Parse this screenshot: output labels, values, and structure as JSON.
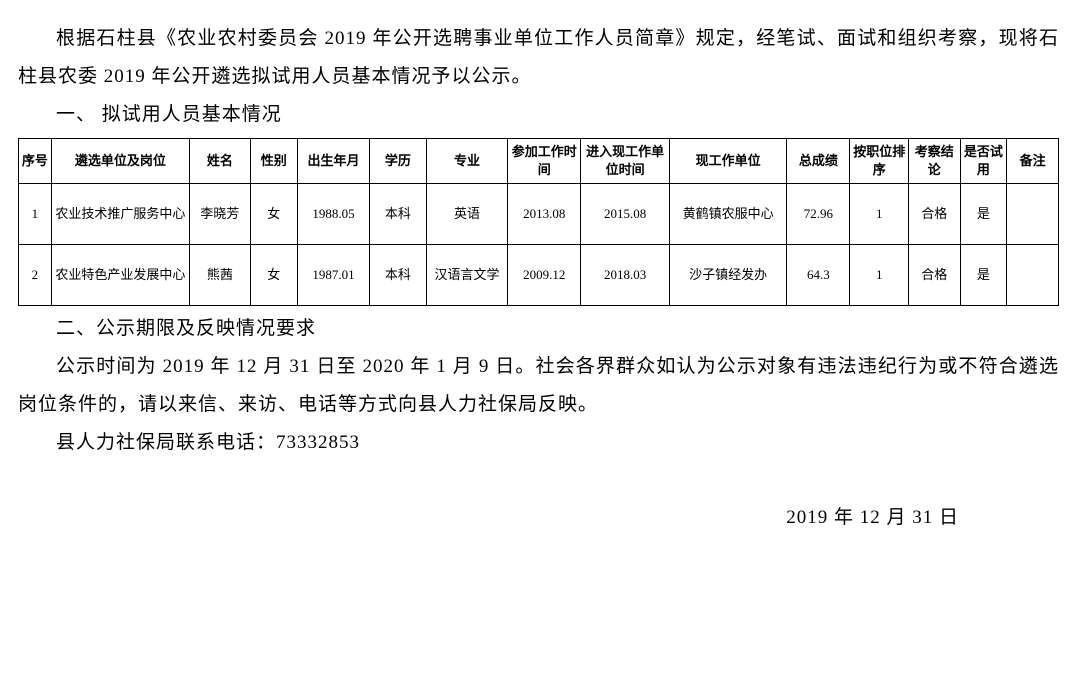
{
  "para1": "根据石柱县《农业农村委员会 2019 年公开选聘事业单位工作人员简章》规定，经笔试、面试和组织考察，现将石柱县农委 2019 年公开遴选拟试用人员基本情况予以公示。",
  "section1": "一、 拟试用人员基本情况",
  "table": {
    "columns": [
      {
        "label": "序号",
        "width": "28"
      },
      {
        "label": "遴选单位及岗位",
        "width": "118"
      },
      {
        "label": "姓名",
        "width": "52"
      },
      {
        "label": "性别",
        "width": "40"
      },
      {
        "label": "出生年月",
        "width": "62"
      },
      {
        "label": "学历",
        "width": "48"
      },
      {
        "label": "专业",
        "width": "70"
      },
      {
        "label": "参加工作时间",
        "width": "62"
      },
      {
        "label": "进入现工作单位时间",
        "width": "76"
      },
      {
        "label": "现工作单位",
        "width": "100"
      },
      {
        "label": "总成绩",
        "width": "54"
      },
      {
        "label": "按职位排序",
        "width": "50"
      },
      {
        "label": "考察结论",
        "width": "44"
      },
      {
        "label": "是否试用",
        "width": "40"
      },
      {
        "label": "备注",
        "width": "44"
      }
    ],
    "rows": [
      [
        "1",
        "农业技术推广服务中心",
        "李晓芳",
        "女",
        "1988.05",
        "本科",
        "英语",
        "2013.08",
        "2015.08",
        "黄鹤镇农服中心",
        "72.96",
        "1",
        "合格",
        "是",
        ""
      ],
      [
        "2",
        "农业特色产业发展中心",
        "熊茜",
        "女",
        "1987.01",
        "本科",
        "汉语言文学",
        "2009.12",
        "2018.03",
        "沙子镇经发办",
        "64.3",
        "1",
        "合格",
        "是",
        ""
      ]
    ]
  },
  "section2": "二、公示期限及反映情况要求",
  "para2": "公示时间为 2019 年 12 月 31 日至 2020 年 1 月 9 日。社会各界群众如认为公示对象有违法违纪行为或不符合遴选岗位条件的，请以来信、来访、电话等方式向县人力社保局反映。",
  "para3": "县人力社保局联系电话：73332853",
  "date": "2019 年 12 月 31 日"
}
